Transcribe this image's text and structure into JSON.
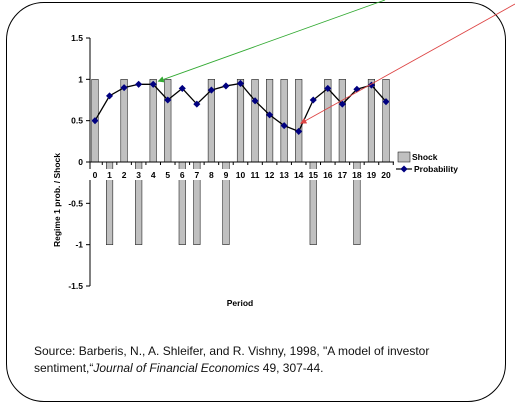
{
  "chart_data": {
    "type": "bar+line",
    "categories": [
      "0",
      "1",
      "2",
      "3",
      "4",
      "5",
      "6",
      "7",
      "8",
      "9",
      "10",
      "11",
      "12",
      "13",
      "14",
      "15",
      "16",
      "17",
      "18",
      "19",
      "20"
    ],
    "series": [
      {
        "name": "Shock",
        "type": "bar",
        "color": "#c0c0c0",
        "values": [
          1,
          -1,
          1,
          -1,
          1,
          1,
          -1,
          -1,
          1,
          -1,
          1,
          1,
          1,
          1,
          1,
          -1,
          1,
          1,
          -1,
          1,
          1
        ]
      },
      {
        "name": "Probability",
        "type": "line",
        "color": "#000080",
        "values": [
          0.5,
          0.8,
          0.9,
          0.94,
          0.94,
          0.75,
          0.89,
          0.7,
          0.87,
          0.92,
          0.95,
          0.74,
          0.57,
          0.44,
          0.37,
          0.75,
          0.89,
          0.7,
          0.88,
          0.93,
          0.73
        ]
      }
    ],
    "xlabel": "Period",
    "ylabel": "Regime 1 prob. / Shock",
    "ylim": [
      -1.5,
      1.5
    ],
    "yticks": [
      "1.5",
      "1",
      "0.5",
      "0",
      "-0.5",
      "-1",
      "-1.5"
    ],
    "legend_position": "right",
    "arrow_colors": {
      "green": "#33aa33",
      "red": "#dd4444"
    }
  },
  "source": {
    "prefix": "Source: Barberis, N., A. Shleifer, and R. Vishny, 1998, \"A model of investor sentiment,“",
    "journal": "Journal of Financial Economics",
    "suffix": " 49, 307-44."
  }
}
